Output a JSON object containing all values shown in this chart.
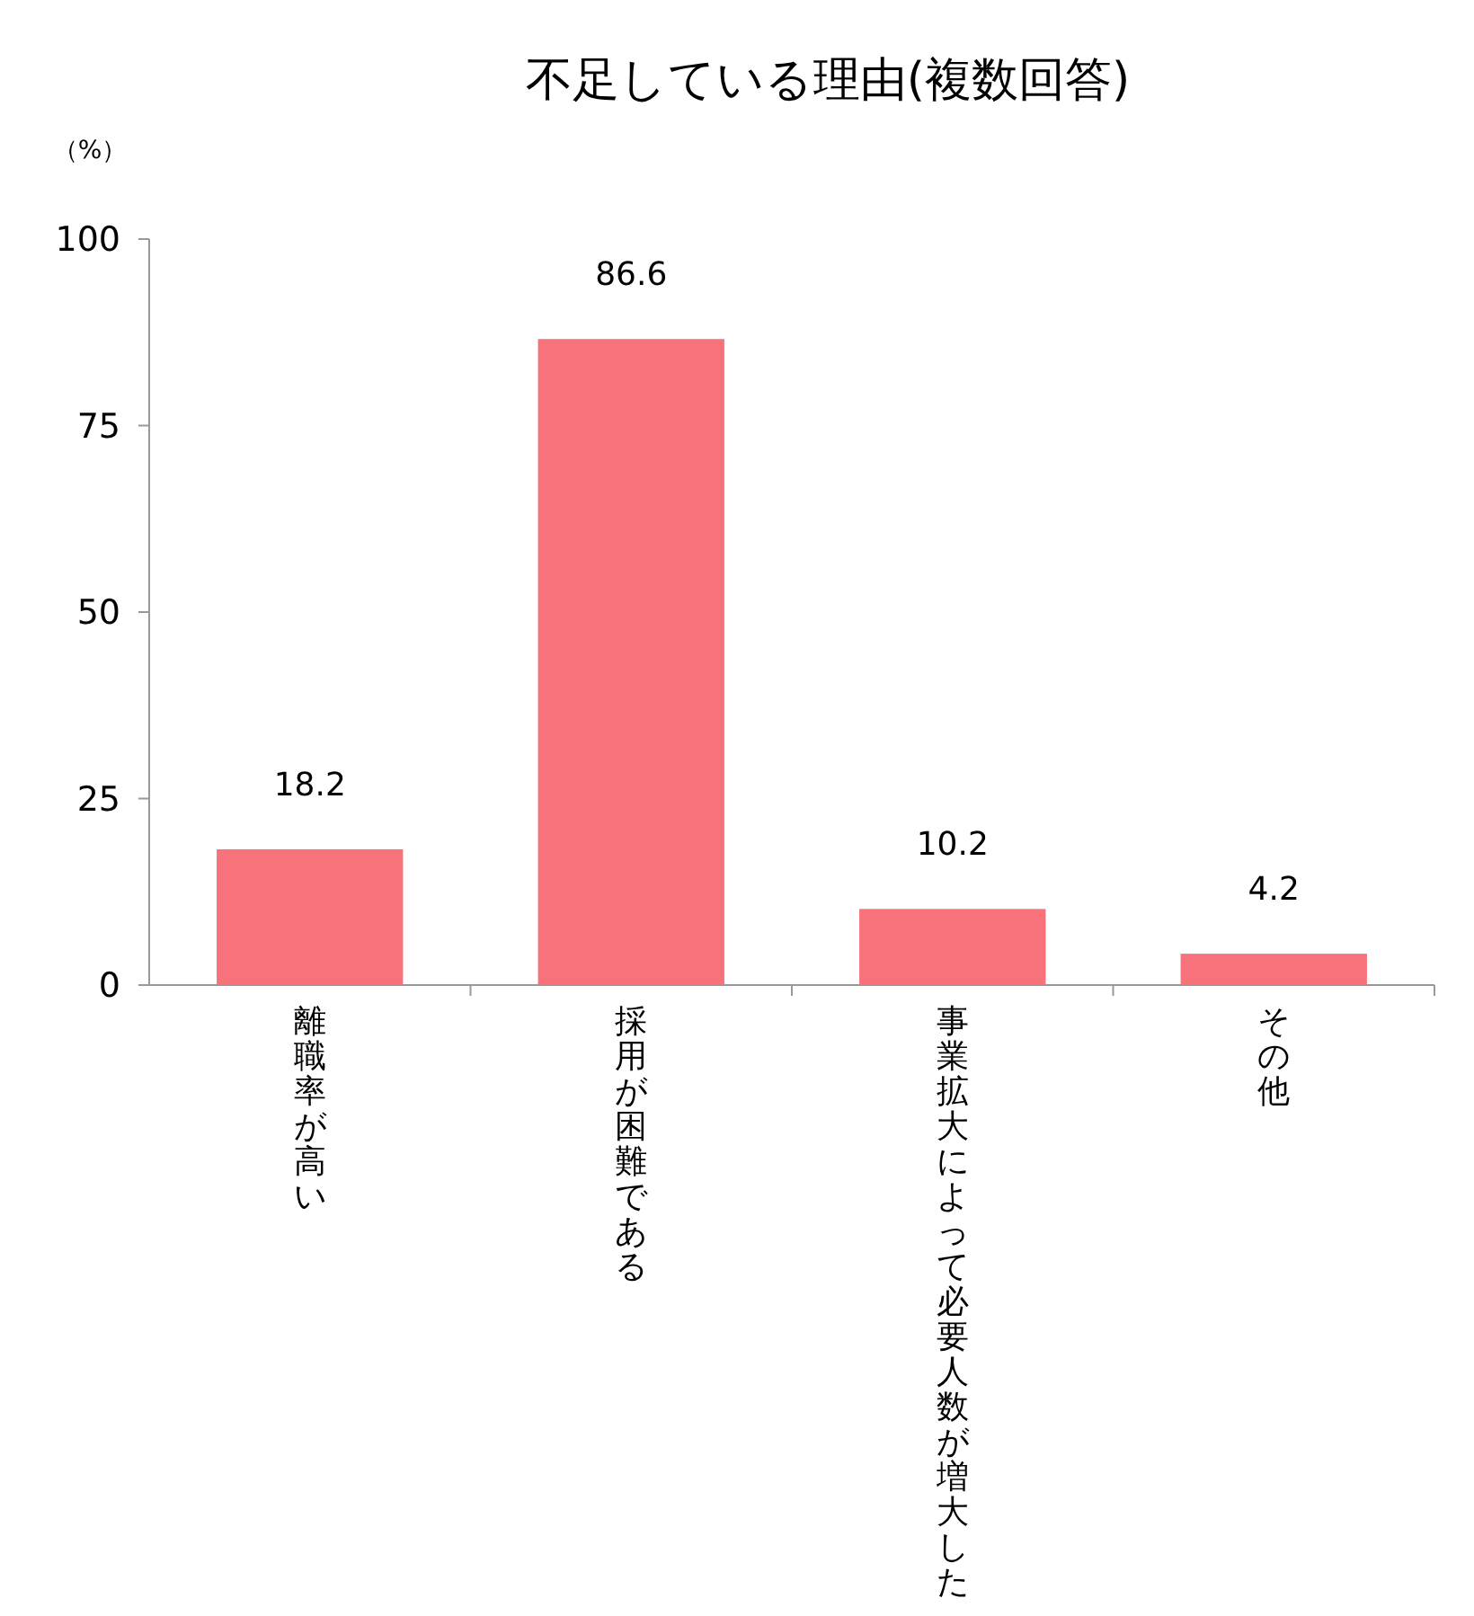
{
  "chart_data": {
    "type": "bar",
    "title": "不足している理由(複数回答)",
    "ylabel": "（%）",
    "categories": [
      "離職率が高い",
      "採用が困難である",
      "事業拡大によって必要人数が増大した",
      "その他"
    ],
    "values": [
      18.2,
      86.6,
      10.2,
      4.2
    ],
    "color": "#f7727b",
    "ylim": [
      0,
      100
    ],
    "yticks": [
      0,
      25,
      50,
      75,
      100
    ],
    "grid": false,
    "data_labels": true
  }
}
